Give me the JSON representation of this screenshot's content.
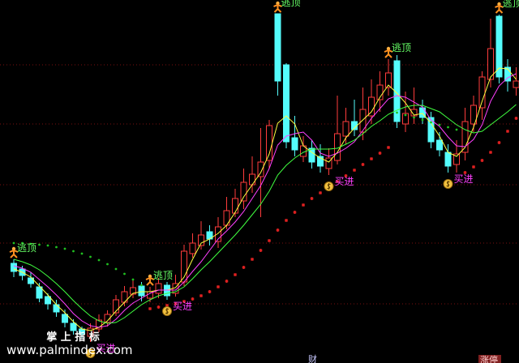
{
  "chart_data": {
    "type": "candlestick",
    "open": [
      12.3,
      11.6,
      10.5,
      9.4,
      8.2,
      7.2,
      6.0,
      4.9,
      4.2,
      3.3,
      4.2,
      5.0,
      6.2,
      7.5,
      8.5,
      9.5,
      8.0,
      8.6,
      9.6,
      8.6,
      10.0,
      13.5,
      14.5,
      16.2,
      15.0,
      17.0,
      18.5,
      20.0,
      22.0,
      23.0,
      25.0,
      43.1,
      36.8,
      27.8,
      25.5,
      26.5,
      25.5,
      24.0,
      25.0,
      28.0,
      29.8,
      28.5,
      30.5,
      32.5,
      34.0,
      37.3,
      29.5,
      30.5,
      31.5,
      30.3,
      27.5,
      26.0,
      24.5,
      26.0,
      29.5,
      31.5,
      35.0,
      42.8,
      36.5,
      34.0
    ],
    "high": [
      12.8,
      12.0,
      11.2,
      9.9,
      8.6,
      7.8,
      6.6,
      5.4,
      4.5,
      4.9,
      6.0,
      6.5,
      8.4,
      9.5,
      10.2,
      10.0,
      9.4,
      10.5,
      10.0,
      10.9,
      14.6,
      16.0,
      17.5,
      17.0,
      18.0,
      20.5,
      21.5,
      24.0,
      25.5,
      29.0,
      30.0,
      43.1,
      37.0,
      30.5,
      28.0,
      27.5,
      27.0,
      26.5,
      33.0,
      31.5,
      32.5,
      34.0,
      35.0,
      36.0,
      37.5,
      38.0,
      33.5,
      34.0,
      32.5,
      31.0,
      28.5,
      27.0,
      27.5,
      31.5,
      33.0,
      36.0,
      42.5,
      43.0,
      37.5,
      36.5
    ],
    "low": [
      10.6,
      10.2,
      9.3,
      7.5,
      6.6,
      5.7,
      4.4,
      3.5,
      3.1,
      2.6,
      3.8,
      4.5,
      5.8,
      7.0,
      8.0,
      7.6,
      7.5,
      8.0,
      7.8,
      8.2,
      9.5,
      13.0,
      14.0,
      14.5,
      14.2,
      16.5,
      18.0,
      19.0,
      21.0,
      18.0,
      24.0,
      33.0,
      26.5,
      25.5,
      24.8,
      24.0,
      23.5,
      23.2,
      24.5,
      27.0,
      28.0,
      27.5,
      29.5,
      31.0,
      33.0,
      29.0,
      28.5,
      29.5,
      29.5,
      26.5,
      25.5,
      23.5,
      23.5,
      25.0,
      28.5,
      30.0,
      34.0,
      34.5,
      33.5,
      33.0
    ],
    "close": [
      11.3,
      10.8,
      9.8,
      8.0,
      7.3,
      6.3,
      5.0,
      4.0,
      3.6,
      4.3,
      5.3,
      6.0,
      7.8,
      8.8,
      9.3,
      8.3,
      8.8,
      9.8,
      8.3,
      9.8,
      13.8,
      14.8,
      15.8,
      15.3,
      16.8,
      18.8,
      20.3,
      22.3,
      23.3,
      24.8,
      29.3,
      34.8,
      27.3,
      26.3,
      26.8,
      24.8,
      24.3,
      25.3,
      28.3,
      29.8,
      28.8,
      31.3,
      32.8,
      34.3,
      35.8,
      29.8,
      30.8,
      31.3,
      30.3,
      27.3,
      26.3,
      24.3,
      25.8,
      29.8,
      31.8,
      35.3,
      38.8,
      35.3,
      34.8,
      34.8
    ],
    "up_color": "#ff3c3c",
    "down_color": "#54fcfc",
    "ylim": [
      0,
      44.8
    ],
    "series": [
      {
        "color": "#ffff40",
        "marker": "line",
        "values": [
          11.6,
          11.2,
          10.6,
          9.5,
          8.4,
          7.2,
          6.2,
          5.1,
          4.2,
          4.0,
          4.4,
          5.2,
          6.4,
          7.5,
          8.6,
          8.8,
          8.8,
          9.0,
          9.0,
          9.3,
          10.6,
          12.8,
          14.8,
          15.3,
          16.0,
          17.0,
          18.6,
          20.5,
          22.0,
          23.5,
          25.8,
          29.6,
          30.5,
          29.5,
          26.8,
          26.0,
          25.3,
          24.8,
          26.0,
          27.8,
          29.0,
          30.0,
          31.0,
          32.8,
          34.3,
          33.3,
          32.1,
          30.6,
          30.8,
          29.6,
          28.0,
          26.0,
          25.5,
          26.6,
          29.1,
          32.3,
          35.3,
          36.4,
          36.3,
          35.0
        ]
      },
      {
        "color": "#ff40ff",
        "marker": "line",
        "values": [
          12.0,
          11.7,
          11.2,
          10.3,
          9.4,
          8.4,
          7.3,
          6.1,
          5.2,
          4.6,
          4.4,
          4.6,
          5.4,
          6.5,
          7.4,
          8.0,
          8.6,
          9.0,
          9.0,
          9.0,
          10.0,
          11.3,
          12.5,
          13.9,
          15.3,
          16.3,
          17.4,
          18.7,
          20.3,
          21.9,
          24.0,
          26.9,
          28.0,
          28.3,
          28.5,
          27.5,
          25.9,
          25.5,
          25.9,
          26.5,
          27.3,
          28.7,
          30.2,
          31.4,
          32.6,
          33.0,
          32.8,
          32.2,
          31.6,
          30.0,
          29.2,
          27.9,
          26.8,
          26.7,
          27.6,
          29.4,
          32.3,
          34.2,
          35.2,
          35.7
        ]
      },
      {
        "color": "#40ff40",
        "marker": "line",
        "values": [
          12.8,
          12.5,
          12.1,
          11.5,
          10.7,
          9.8,
          8.8,
          7.7,
          6.7,
          5.8,
          5.2,
          4.9,
          5.0,
          5.6,
          6.4,
          7.2,
          7.8,
          8.3,
          8.6,
          8.8,
          9.4,
          10.4,
          11.5,
          12.5,
          13.6,
          14.7,
          15.8,
          17.0,
          18.3,
          19.6,
          21.2,
          23.2,
          24.4,
          25.3,
          26.0,
          26.4,
          26.4,
          26.4,
          26.5,
          27.0,
          27.5,
          28.3,
          29.2,
          29.9,
          30.7,
          31.2,
          31.6,
          31.8,
          31.8,
          31.4,
          31.0,
          30.2,
          29.4,
          28.8,
          28.4,
          28.6,
          29.4,
          30.2,
          31.0,
          31.9
        ]
      },
      {
        "color": "#20c020",
        "marker": "dot",
        "values": [
          14.8,
          14.8,
          14.7,
          14.6,
          14.5,
          14.3,
          14.1,
          13.8,
          13.5,
          13.1,
          12.7,
          12.2,
          11.6,
          11.0,
          10.3,
          9.6,
          null,
          null,
          null,
          null,
          null,
          null,
          null,
          null,
          null,
          null,
          null,
          null,
          null,
          null,
          null,
          null,
          null,
          null,
          null,
          null,
          null,
          null,
          null,
          null,
          null,
          null,
          null,
          null,
          null,
          30.9,
          30.6,
          30.3,
          30.0,
          29.7,
          29.4,
          29.1,
          28.8,
          null,
          null,
          null,
          null,
          null,
          null,
          null
        ]
      },
      {
        "color": "#e02020",
        "marker": "star",
        "values": [
          null,
          null,
          null,
          null,
          null,
          null,
          null,
          null,
          null,
          null,
          null,
          null,
          null,
          null,
          null,
          null,
          6.7,
          6.9,
          7.1,
          7.3,
          7.6,
          7.9,
          8.3,
          8.8,
          9.4,
          10.1,
          10.9,
          11.8,
          12.8,
          13.9,
          15.1,
          16.4,
          17.6,
          18.6,
          19.5,
          20.3,
          21.0,
          21.7,
          22.4,
          23.1,
          23.8,
          24.5,
          25.2,
          25.9,
          26.6,
          null,
          null,
          null,
          null,
          null,
          null,
          null,
          null,
          23.5,
          24.2,
          25.0,
          26.0,
          27.2,
          28.6,
          30.2
        ]
      }
    ],
    "signals": [
      "逃顶",
      null,
      null,
      null,
      null,
      null,
      null,
      null,
      null,
      "买进",
      null,
      null,
      null,
      null,
      null,
      null,
      "逃顶",
      null,
      "买进",
      null,
      null,
      null,
      null,
      null,
      null,
      null,
      null,
      null,
      null,
      null,
      null,
      "逃顶",
      null,
      null,
      null,
      null,
      null,
      "买进",
      null,
      null,
      null,
      null,
      null,
      null,
      "逃顶",
      null,
      null,
      null,
      null,
      null,
      null,
      "买进",
      null,
      null,
      null,
      null,
      null,
      "逃顶",
      null,
      null
    ],
    "sell_signal_color": "#66ff66",
    "buy_signal_color": "#ff40ff"
  },
  "watermark": {
    "title": "掌 上 指 标",
    "url": "www.palmindex.com"
  },
  "footer_labels": [
    "财",
    "涨停"
  ]
}
